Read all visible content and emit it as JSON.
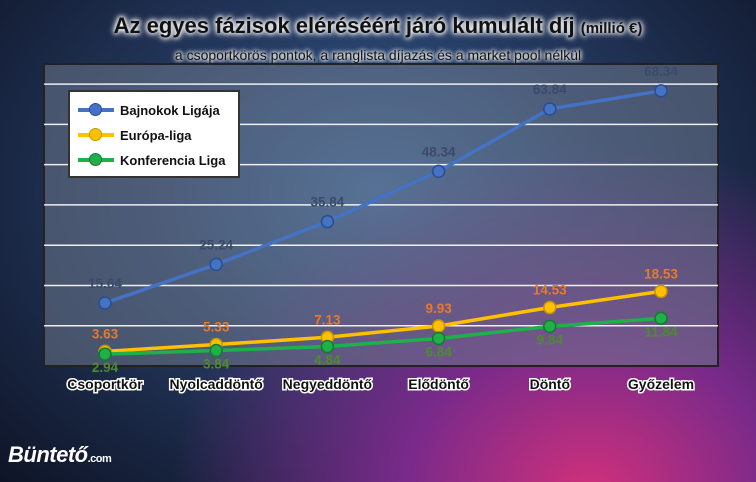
{
  "title": "Az egyes fázisok eléréséért járó kumulált díj",
  "title_unit": "(millió €)",
  "subtitle": "a csoportkörös pontok, a ranglista díjazás és a market pool nélkül",
  "watermark": {
    "text": "Büntető",
    "suffix": ".com"
  },
  "chart_data": {
    "type": "line",
    "categories": [
      "Csoportkör",
      "Nyolcaddöntő",
      "Negyeddöntő",
      "Elődöntő",
      "Döntő",
      "Győzelem"
    ],
    "ylim": [
      0,
      75
    ],
    "grid": true,
    "legend_position": "top-left",
    "series": [
      {
        "name": "Bajnokok Ligája",
        "color": "#4472c4",
        "label_color": "#3a4a6a",
        "values": [
          15.64,
          25.24,
          35.84,
          48.34,
          63.84,
          68.34
        ]
      },
      {
        "name": "Európa-liga",
        "color": "#ffc000",
        "label_color": "#e87a2a",
        "values": [
          3.63,
          5.33,
          7.13,
          9.93,
          14.53,
          18.53
        ]
      },
      {
        "name": "Konferencia Liga",
        "color": "#1fb04a",
        "label_color": "#4e8a2e",
        "values": [
          2.94,
          3.84,
          4.84,
          6.84,
          9.84,
          11.84
        ]
      }
    ]
  }
}
